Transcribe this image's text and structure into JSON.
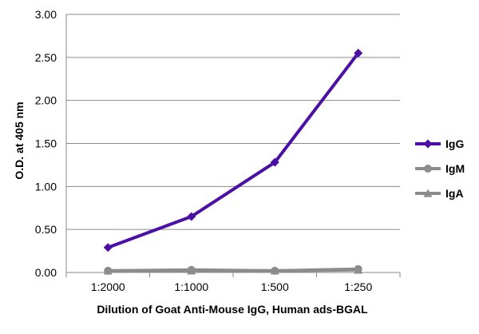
{
  "chart_data": {
    "type": "line",
    "title": "",
    "xlabel": "Dilution of Goat Anti-Mouse IgG, Human ads-BGAL",
    "ylabel": "O.D. at 405 nm",
    "categories": [
      "1:2000",
      "1:1000",
      "1:500",
      "1:250"
    ],
    "ylim": [
      0,
      3
    ],
    "yticks": [
      "0.00",
      "0.50",
      "1.00",
      "1.50",
      "2.00",
      "2.50",
      "3.00"
    ],
    "grid": "horizontal",
    "legend_position": "right",
    "series": [
      {
        "name": "IgG",
        "values": [
          0.29,
          0.65,
          1.28,
          2.55
        ],
        "color": "#4B0FA5",
        "marker": "diamond"
      },
      {
        "name": "IgM",
        "values": [
          0.02,
          0.03,
          0.02,
          0.04
        ],
        "color": "#8C8C8C",
        "marker": "circle"
      },
      {
        "name": "IgA",
        "values": [
          0.02,
          0.02,
          0.02,
          0.03
        ],
        "color": "#8C8C8C",
        "marker": "triangle"
      }
    ]
  }
}
